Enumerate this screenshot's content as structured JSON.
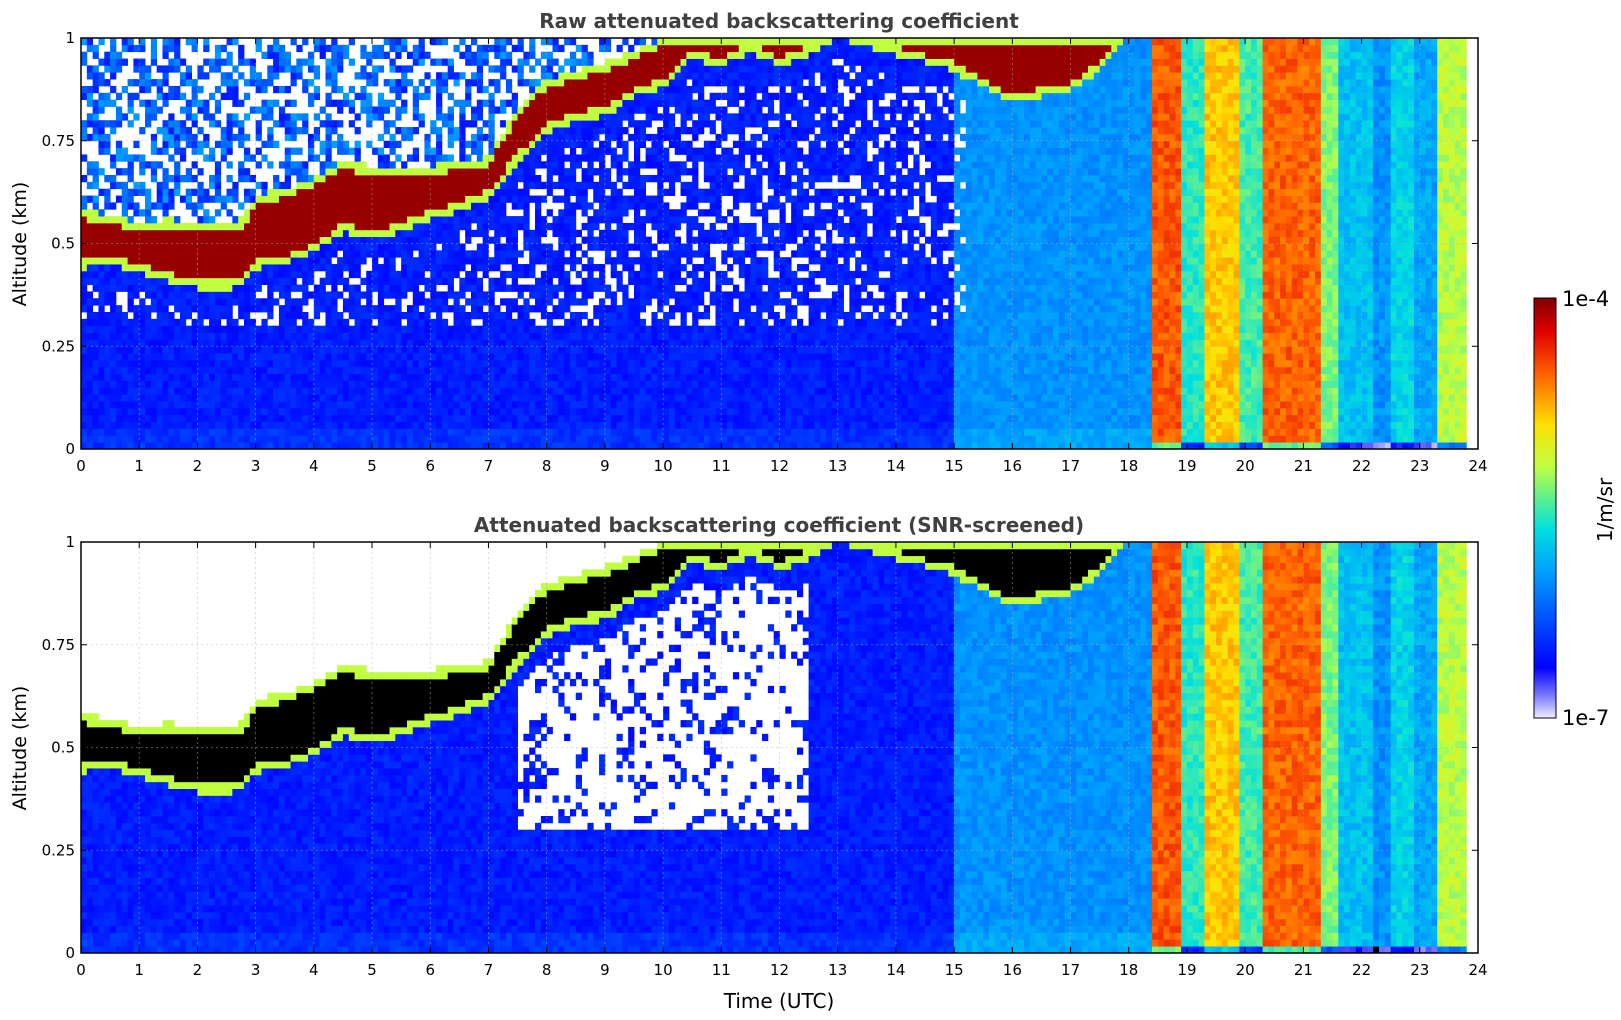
{
  "figure": {
    "colorbar": {
      "label": "1/m/sr",
      "max_label": "1e-4",
      "min_label": "1e-7",
      "scale": "log",
      "range": [
        1e-07,
        0.0001
      ],
      "colormap": "jet"
    }
  },
  "chart_data": [
    {
      "type": "heatmap",
      "title": "Raw attenuated backscattering coefficient",
      "xlabel": "",
      "ylabel": "Altitude (km)",
      "xlim": [
        0,
        24
      ],
      "ylim": [
        0,
        1
      ],
      "xticks": [
        "0",
        "1",
        "2",
        "3",
        "4",
        "5",
        "6",
        "7",
        "8",
        "9",
        "10",
        "11",
        "12",
        "13",
        "14",
        "15",
        "16",
        "17",
        "18",
        "19",
        "20",
        "21",
        "22",
        "23",
        "24"
      ],
      "yticks": [
        "0",
        "0.25",
        "0.5",
        "0.75",
        "1"
      ],
      "grid": true,
      "screened": false
    },
    {
      "type": "heatmap",
      "title": "Attenuated backscattering coefficient (SNR-screened)",
      "xlabel": "Time (UTC)",
      "ylabel": "Altitude (km)",
      "xlim": [
        0,
        24
      ],
      "ylim": [
        0,
        1
      ],
      "xticks": [
        "0",
        "1",
        "2",
        "3",
        "4",
        "5",
        "6",
        "7",
        "8",
        "9",
        "10",
        "11",
        "12",
        "13",
        "14",
        "15",
        "16",
        "17",
        "18",
        "19",
        "20",
        "21",
        "22",
        "23",
        "24"
      ],
      "yticks": [
        "0",
        "0.25",
        "0.5",
        "0.75",
        "1"
      ],
      "grid": true,
      "screened": true
    }
  ],
  "cloud_base_km": [
    {
      "t": 0.0,
      "base": 0.44,
      "top": 0.58
    },
    {
      "t": 0.5,
      "base": 0.45,
      "top": 0.57
    },
    {
      "t": 1.0,
      "base": 0.43,
      "top": 0.55
    },
    {
      "t": 1.5,
      "base": 0.41,
      "top": 0.56
    },
    {
      "t": 2.0,
      "base": 0.39,
      "top": 0.55
    },
    {
      "t": 2.5,
      "base": 0.39,
      "top": 0.55
    },
    {
      "t": 2.8,
      "base": 0.4,
      "top": 0.56
    },
    {
      "t": 3.0,
      "base": 0.44,
      "top": 0.62
    },
    {
      "t": 3.5,
      "base": 0.45,
      "top": 0.63
    },
    {
      "t": 4.0,
      "base": 0.48,
      "top": 0.66
    },
    {
      "t": 4.5,
      "base": 0.53,
      "top": 0.7
    },
    {
      "t": 5.0,
      "base": 0.51,
      "top": 0.69
    },
    {
      "t": 5.5,
      "base": 0.53,
      "top": 0.68
    },
    {
      "t": 6.0,
      "base": 0.56,
      "top": 0.69
    },
    {
      "t": 6.5,
      "base": 0.58,
      "top": 0.7
    },
    {
      "t": 7.0,
      "base": 0.61,
      "top": 0.71
    },
    {
      "t": 7.5,
      "base": 0.7,
      "top": 0.83
    },
    {
      "t": 8.0,
      "base": 0.77,
      "top": 0.9
    },
    {
      "t": 8.5,
      "base": 0.8,
      "top": 0.92
    },
    {
      "t": 9.0,
      "base": 0.81,
      "top": 0.94
    },
    {
      "t": 9.5,
      "base": 0.86,
      "top": 0.97
    },
    {
      "t": 10.0,
      "base": 0.88,
      "top": 1.0
    },
    {
      "t": 10.5,
      "base": 0.95,
      "top": 1.0
    },
    {
      "t": 11.0,
      "base": 0.93,
      "top": 1.0
    },
    {
      "t": 11.5,
      "base": 0.97,
      "top": 1.0
    },
    {
      "t": 12.0,
      "base": 0.93,
      "top": 1.0
    },
    {
      "t": 12.5,
      "base": 0.96,
      "top": 1.0
    },
    {
      "t": 13.0,
      "base": 1.0,
      "top": 1.0
    },
    {
      "t": 13.5,
      "base": 0.98,
      "top": 1.0
    },
    {
      "t": 14.0,
      "base": 0.96,
      "top": 1.0
    },
    {
      "t": 15.0,
      "base": 0.92,
      "top": 1.0
    },
    {
      "t": 15.5,
      "base": 0.88,
      "top": 1.0
    },
    {
      "t": 16.0,
      "base": 0.84,
      "top": 1.0
    },
    {
      "t": 16.5,
      "base": 0.86,
      "top": 1.0
    },
    {
      "t": 17.0,
      "base": 0.87,
      "top": 1.0
    },
    {
      "t": 17.5,
      "base": 0.92,
      "top": 1.0
    },
    {
      "t": 18.0,
      "base": 1.0,
      "top": 1.0
    }
  ]
}
